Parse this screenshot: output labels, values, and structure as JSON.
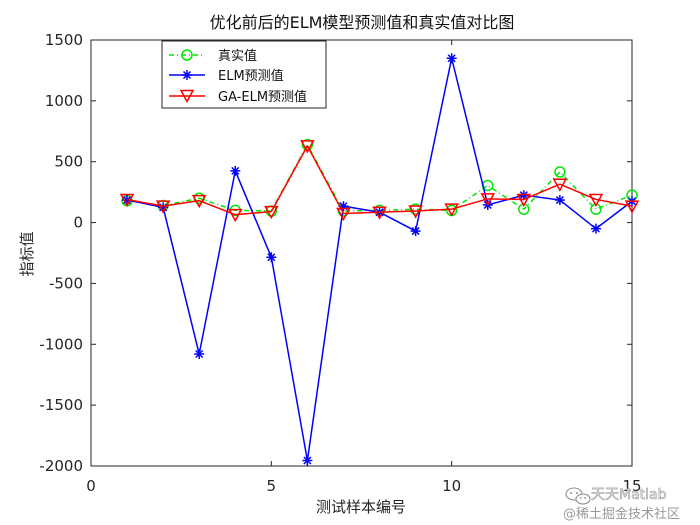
{
  "chart_data": {
    "type": "line",
    "title": "优化前后的ELM模型预测值和真实值对比图",
    "xlabel": "测试样本编号",
    "ylabel": "指标值",
    "xlim": [
      0,
      15
    ],
    "ylim": [
      -2000,
      1500
    ],
    "xticks": [
      "0",
      "5",
      "10",
      "15"
    ],
    "yticks": [
      "-2000",
      "-1500",
      "-1000",
      "-500",
      "0",
      "500",
      "1000",
      "1500"
    ],
    "x": [
      1,
      2,
      3,
      4,
      5,
      6,
      7,
      8,
      9,
      10,
      11,
      12,
      13,
      14,
      15
    ],
    "grid": false,
    "legend_position": "top-left",
    "series": [
      {
        "name": "真实值",
        "color": "#00e600",
        "values": [
          180,
          140,
          200,
          100,
          95,
          640,
          95,
          100,
          110,
          100,
          305,
          110,
          415,
          110,
          225
        ]
      },
      {
        "name": "ELM预测值",
        "color": "#0000ff",
        "values": [
          185,
          125,
          -1080,
          425,
          -285,
          -1955,
          135,
          85,
          -70,
          1350,
          145,
          225,
          185,
          -50,
          175
        ]
      },
      {
        "name": "GA-ELM预测值",
        "color": "#ff0000",
        "values": [
          190,
          135,
          180,
          65,
          90,
          630,
          75,
          85,
          95,
          110,
          195,
          190,
          315,
          190,
          135
        ]
      }
    ]
  },
  "watermark": {
    "line1": "天天Matlab",
    "line2": "@稀土掘金技术社区",
    "icon": "wechat-icon"
  }
}
